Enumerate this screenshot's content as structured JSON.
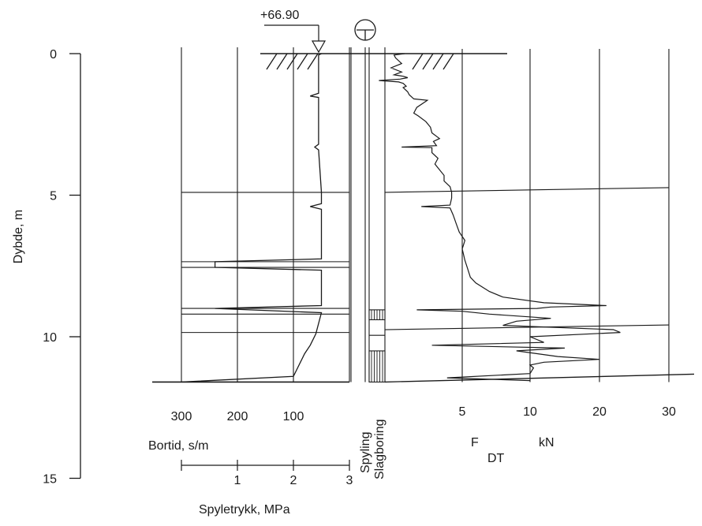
{
  "chart_data": {
    "type": "line",
    "elevation_label": "+66.90",
    "depth_axis": {
      "label": "Dybde, m",
      "ticks": [
        "0",
        "5",
        "10",
        "15"
      ],
      "range": [
        0,
        15
      ],
      "minor_step": 1
    },
    "bortid_axis": {
      "label": "Bortid, s/m",
      "ticks": [
        "300",
        "200",
        "100"
      ],
      "tick_values": [
        300,
        200,
        100
      ],
      "range": [
        0,
        300
      ]
    },
    "spyletrykk_axis": {
      "label": "Spyletrykk, MPa",
      "ticks": [
        "1",
        "2",
        "3"
      ],
      "tick_values": [
        1,
        2,
        3
      ],
      "range": [
        0,
        3
      ]
    },
    "method_columns": [
      "Spyling",
      "Slagboring"
    ],
    "fdt_axis": {
      "label_main": "F",
      "label_sub": "DT",
      "unit": "kN",
      "ticks": [
        "5",
        "10",
        "20",
        "30"
      ],
      "tick_values": [
        5,
        10,
        20,
        30
      ]
    },
    "bortid_horizontal_lines_depth": [
      4.9,
      7.35,
      7.55,
      9.0,
      9.2,
      9.85
    ],
    "fdt_horizontal_lines_depth": [
      4.9,
      9.75
    ],
    "max_depth": 11.6,
    "bortid_profile": [
      [
        0.0,
        50
      ],
      [
        0.05,
        55
      ],
      [
        0.15,
        55
      ],
      [
        1.4,
        55
      ],
      [
        1.5,
        70
      ],
      [
        1.55,
        55
      ],
      [
        3.2,
        55
      ],
      [
        3.3,
        62
      ],
      [
        3.4,
        55
      ],
      [
        4.9,
        50
      ],
      [
        5.3,
        50
      ],
      [
        5.4,
        70
      ],
      [
        5.5,
        50
      ],
      [
        7.25,
        50
      ],
      [
        7.35,
        240
      ],
      [
        7.55,
        240
      ],
      [
        7.65,
        50
      ],
      [
        8.9,
        50
      ],
      [
        9.0,
        240
      ],
      [
        9.15,
        50
      ],
      [
        9.9,
        60
      ],
      [
        10.3,
        70
      ],
      [
        10.6,
        80
      ],
      [
        11.0,
        90
      ],
      [
        11.4,
        100
      ],
      [
        11.6,
        300
      ]
    ],
    "slagboring_start_depth": 9.05,
    "fdt_profile": [
      [
        0.0,
        1.2
      ],
      [
        0.05,
        0.5
      ],
      [
        0.15,
        0.6
      ],
      [
        0.35,
        1.0
      ],
      [
        0.5,
        0.3
      ],
      [
        0.65,
        1.0
      ],
      [
        0.75,
        0.5
      ],
      [
        0.8,
        1.1
      ],
      [
        0.85,
        1.4
      ],
      [
        0.9,
        0.9
      ],
      [
        0.95,
        -0.5
      ],
      [
        1.0,
        0.8
      ],
      [
        1.05,
        1.1
      ],
      [
        1.15,
        1.3
      ],
      [
        1.2,
        1.1
      ],
      [
        1.35,
        1.4
      ],
      [
        1.45,
        1.5
      ],
      [
        1.6,
        1.8
      ],
      [
        1.65,
        2.7
      ],
      [
        1.9,
        2.0
      ],
      [
        2.1,
        1.8
      ],
      [
        2.2,
        2.1
      ],
      [
        2.4,
        2.6
      ],
      [
        2.6,
        2.9
      ],
      [
        2.8,
        3.0
      ],
      [
        3.0,
        3.5
      ],
      [
        3.1,
        3.1
      ],
      [
        3.25,
        3.3
      ],
      [
        3.3,
        1.0
      ],
      [
        3.32,
        3.0
      ],
      [
        3.5,
        3.0
      ],
      [
        3.7,
        3.4
      ],
      [
        3.9,
        3.2
      ],
      [
        4.1,
        3.5
      ],
      [
        4.3,
        3.8
      ],
      [
        4.5,
        3.8
      ],
      [
        4.7,
        4.2
      ],
      [
        4.9,
        4.3
      ],
      [
        5.1,
        4.3
      ],
      [
        5.35,
        4.2
      ],
      [
        5.4,
        2.3
      ],
      [
        5.45,
        4.2
      ],
      [
        5.7,
        4.4
      ],
      [
        6.0,
        4.6
      ],
      [
        6.3,
        4.8
      ],
      [
        6.6,
        5.2
      ],
      [
        6.9,
        5.0
      ],
      [
        7.3,
        5.2
      ],
      [
        7.6,
        5.4
      ],
      [
        7.9,
        5.6
      ],
      [
        8.1,
        6.0
      ],
      [
        8.4,
        7.0
      ],
      [
        8.6,
        8.0
      ],
      [
        8.8,
        12.0
      ],
      [
        8.9,
        21.0
      ],
      [
        8.95,
        13.0
      ],
      [
        9.0,
        11.0
      ],
      [
        9.05,
        2.0
      ],
      [
        9.1,
        5.0
      ],
      [
        9.2,
        7.0
      ],
      [
        9.35,
        13.0
      ],
      [
        9.45,
        9.0
      ],
      [
        9.6,
        8.0
      ],
      [
        9.75,
        22.0
      ],
      [
        9.85,
        23.0
      ],
      [
        10.0,
        10.0
      ],
      [
        10.2,
        12.0
      ],
      [
        10.3,
        3.0
      ],
      [
        10.4,
        15.0
      ],
      [
        10.5,
        9.0
      ],
      [
        10.7,
        14.0
      ],
      [
        10.8,
        20.0
      ],
      [
        10.9,
        12.0
      ],
      [
        11.0,
        10.0
      ],
      [
        11.1,
        10.5
      ],
      [
        11.3,
        10.0
      ],
      [
        11.45,
        4.0
      ],
      [
        11.55,
        10.0
      ]
    ],
    "title": "",
    "grid": true
  }
}
